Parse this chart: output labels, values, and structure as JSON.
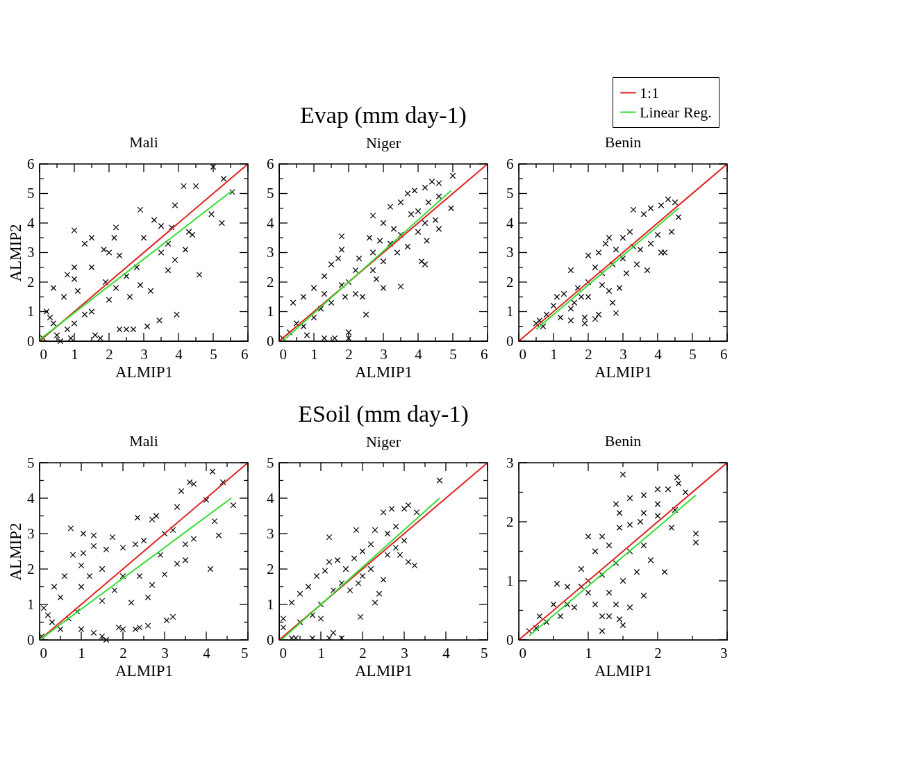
{
  "chart_data": [
    {
      "type": "scatter",
      "title": "Mali",
      "xlabel": "ALMIP1",
      "ylabel": "ALMIP2",
      "xlim": [
        0,
        6
      ],
      "ylim": [
        0,
        6
      ],
      "xticks": [
        0,
        {
          "value": 0.5,
          "label": null
        },
        1,
        {
          "value": 1.5,
          "label": null
        },
        2,
        {
          "value": 2.5,
          "label": null
        },
        3,
        {
          "value": 3.5,
          "label": null
        },
        4,
        {
          "value": 4.5,
          "label": null
        },
        5,
        {
          "value": 5.5,
          "label": null
        },
        6
      ],
      "yticks": [
        0,
        {
          "value": 0.5,
          "label": null
        },
        1,
        {
          "value": 1.5,
          "label": null
        },
        2,
        {
          "value": 2.5,
          "label": null
        },
        3,
        {
          "value": 3.5,
          "label": null
        },
        4,
        {
          "value": 4.5,
          "label": null
        },
        5,
        {
          "value": 5.5,
          "label": null
        },
        6
      ],
      "grid": false,
      "series": [
        {
          "type": "scatter",
          "marker": "cross",
          "color": "#000000",
          "x": [
            1.0,
            2.2,
            2.15,
            2.9,
            5.0,
            5.3,
            4.15,
            4.5,
            5.25,
            4.95,
            5.55,
            4.6,
            3.95,
            3.45,
            3.1,
            2.3,
            2.5,
            2.7,
            1.75,
            1.6,
            0.4,
            0.7,
            0.8,
            1.0,
            1.5,
            1.3,
            1.85,
            2.0,
            2.3,
            1.5,
            1.9,
            2.2,
            2.5,
            2.8,
            3.3,
            3.5,
            3.8,
            3.9,
            4.3,
            4.4,
            3.7,
            3.9,
            3.2,
            2.9,
            3.5,
            3.0,
            2.6,
            2.0,
            1.3,
            1.0,
            0.8,
            0.5,
            0.3,
            0.2,
            0.4,
            0.1,
            0.6,
            0.9,
            1.5,
            1.1,
            1.0,
            4.2,
            3.7
          ],
          "values": [
            3.75,
            3.85,
            3.5,
            4.45,
            5.9,
            5.5,
            5.25,
            5.25,
            4.0,
            4.3,
            5.05,
            2.25,
            0.9,
            0.7,
            0.5,
            0.4,
            0.4,
            0.4,
            0.1,
            0.2,
            1.8,
            1.5,
            2.25,
            2.5,
            3.5,
            3.3,
            3.1,
            3.0,
            2.9,
            2.5,
            2.0,
            1.8,
            2.2,
            2.5,
            4.1,
            3.9,
            3.85,
            4.6,
            3.7,
            3.6,
            2.4,
            2.75,
            1.7,
            1.9,
            3.0,
            3.5,
            1.5,
            1.4,
            0.9,
            0.6,
            0.4,
            0.2,
            0.8,
            1.0,
            0.6,
            0.1,
            0.0,
            0.1,
            1.0,
            1.7,
            2.1,
            3.1,
            3.3
          ]
        },
        {
          "type": "line",
          "color": "#e02020",
          "x": [
            0,
            6
          ],
          "values": [
            0,
            6
          ]
        },
        {
          "type": "line",
          "color": "#33dd33",
          "x": [
            0,
            5.55
          ],
          "values": [
            0.05,
            5.1
          ]
        }
      ]
    },
    {
      "type": "scatter",
      "title": "Evap (mm day-1)",
      "subtitle": "Niger",
      "xlabel": "ALMIP1",
      "xlim": [
        0,
        6
      ],
      "ylim": [
        0,
        6
      ],
      "xticks": [
        0,
        {
          "value": 0.5,
          "label": null
        },
        1,
        {
          "value": 1.5,
          "label": null
        },
        2,
        {
          "value": 2.5,
          "label": null
        },
        3,
        {
          "value": 3.5,
          "label": null
        },
        4,
        {
          "value": 4.5,
          "label": null
        },
        5,
        {
          "value": 5.5,
          "label": null
        },
        6
      ],
      "yticks": [
        0,
        {
          "value": 0.5,
          "label": null
        },
        1,
        {
          "value": 1.5,
          "label": null
        },
        2,
        {
          "value": 2.5,
          "label": null
        },
        3,
        {
          "value": 3.5,
          "label": null
        },
        4,
        {
          "value": 4.5,
          "label": null
        },
        5,
        {
          "value": 5.5,
          "label": null
        },
        6
      ],
      "grid": false,
      "series": [
        {
          "type": "scatter",
          "marker": "cross",
          "color": "#000000",
          "x": [
            0.4,
            0.7,
            1.0,
            1.3,
            1.5,
            1.8,
            1.8,
            1.7,
            2.7,
            2.6,
            3.0,
            3.2,
            3.5,
            3.7,
            3.9,
            4.2,
            4.4,
            4.6,
            5.0,
            4.95,
            4.6,
            4.5,
            4.2,
            4.25,
            4.1,
            4.2,
            3.5,
            3.0,
            2.5,
            2.4,
            2.0,
            2.0,
            1.6,
            1.3,
            0.8,
            0.3,
            0.1,
            0.5,
            0.7,
            1.0,
            1.2,
            1.5,
            2.0,
            2.2,
            2.2,
            2.7,
            2.7,
            3.0,
            3.2,
            3.4,
            3.5,
            3.7,
            3.8,
            4.0,
            4.3,
            4.6,
            3.3,
            2.9,
            2.3,
            1.8,
            1.9,
            1.3,
            4.0,
            2.8
          ],
          "values": [
            1.3,
            1.5,
            1.8,
            2.2,
            2.6,
            3.55,
            3.1,
            2.8,
            4.25,
            3.5,
            4.0,
            4.55,
            4.7,
            5.0,
            5.1,
            5.2,
            5.4,
            5.35,
            5.6,
            4.5,
            3.8,
            4.1,
            4.0,
            3.4,
            2.7,
            2.6,
            1.85,
            1.8,
            0.9,
            1.5,
            0.3,
            0.1,
            0.1,
            0.1,
            0.2,
            0.3,
            0.1,
            0.6,
            0.5,
            0.8,
            1.1,
            1.3,
            2.0,
            2.4,
            1.6,
            3.0,
            2.4,
            2.7,
            3.3,
            3.0,
            3.6,
            3.2,
            4.3,
            4.4,
            4.7,
            4.9,
            3.8,
            3.4,
            2.8,
            1.9,
            1.5,
            1.6,
            3.7,
            2.1
          ]
        },
        {
          "type": "line",
          "color": "#e02020",
          "x": [
            0,
            6
          ],
          "values": [
            0,
            6
          ]
        },
        {
          "type": "line",
          "color": "#33dd33",
          "x": [
            0.1,
            4.95
          ],
          "values": [
            0,
            5.1
          ]
        }
      ]
    },
    {
      "type": "scatter",
      "title": "Benin",
      "xlabel": "ALMIP1",
      "xlim": [
        0,
        6
      ],
      "ylim": [
        0,
        6
      ],
      "xticks": [
        0,
        {
          "value": 0.5,
          "label": null
        },
        1,
        {
          "value": 1.5,
          "label": null
        },
        2,
        {
          "value": 2.5,
          "label": null
        },
        3,
        {
          "value": 3.5,
          "label": null
        },
        4,
        {
          "value": 4.5,
          "label": null
        },
        5,
        {
          "value": 5.5,
          "label": null
        },
        6
      ],
      "yticks": [
        0,
        {
          "value": 0.5,
          "label": null
        },
        1,
        {
          "value": 1.5,
          "label": null
        },
        2,
        {
          "value": 2.5,
          "label": null
        },
        3,
        {
          "value": 3.5,
          "label": null
        },
        4,
        {
          "value": 4.5,
          "label": null
        },
        5,
        {
          "value": 5.5,
          "label": null
        },
        6
      ],
      "grid": false,
      "legend": "top right",
      "series": [
        {
          "type": "scatter",
          "marker": "cross",
          "color": "#000000",
          "x": [
            0.5,
            0.6,
            0.8,
            1.0,
            1.1,
            1.5,
            1.3,
            1.5,
            1.5,
            1.9,
            1.9,
            2.2,
            2.3,
            2.8,
            2.7,
            2.9,
            2.6,
            2.0,
            2.0,
            2.2,
            2.0,
            2.3,
            2.5,
            2.6,
            2.8,
            3.0,
            3.2,
            3.3,
            3.6,
            3.8,
            4.1,
            4.3,
            4.5,
            4.6,
            4.4,
            4.1,
            4.2,
            3.7,
            3.4,
            3.1,
            3.5,
            3.8,
            4.0,
            1.2,
            0.7,
            1.7,
            1.8,
            2.4,
            2.4,
            3.0,
            3.3,
            2.7,
            1.6
          ],
          "values": [
            0.6,
            0.7,
            0.9,
            1.2,
            1.5,
            2.4,
            1.6,
            1.1,
            0.7,
            0.8,
            0.6,
            0.75,
            0.9,
            0.95,
            1.3,
            1.8,
            1.7,
            1.5,
            2.0,
            2.5,
            2.9,
            3.0,
            3.3,
            3.5,
            3.1,
            3.5,
            3.7,
            4.45,
            4.3,
            4.5,
            4.6,
            4.8,
            4.7,
            4.2,
            3.7,
            3.0,
            3.0,
            2.4,
            2.6,
            2.3,
            3.1,
            3.3,
            3.6,
            0.8,
            0.5,
            1.8,
            1.5,
            2.3,
            1.9,
            2.8,
            3.2,
            2.6,
            1.3
          ]
        },
        {
          "type": "line",
          "name": "1:1",
          "color": "#e02020",
          "x": [
            0,
            6
          ],
          "values": [
            0,
            6
          ]
        },
        {
          "type": "line",
          "name": "Linear Reg.",
          "color": "#33dd33",
          "x": [
            0.5,
            4.6
          ],
          "values": [
            0.4,
            4.5
          ]
        }
      ]
    },
    {
      "type": "scatter",
      "title": "Mali",
      "xlabel": "ALMIP1",
      "ylabel": "ALMIP2",
      "xlim": [
        0,
        5
      ],
      "ylim": [
        0,
        5
      ],
      "xticks": [
        0,
        {
          "value": 0.5,
          "label": null
        },
        1,
        {
          "value": 1.5,
          "label": null
        },
        2,
        {
          "value": 2.5,
          "label": null
        },
        3,
        {
          "value": 3.5,
          "label": null
        },
        4,
        {
          "value": 4.5,
          "label": null
        },
        5
      ],
      "yticks": [
        0,
        {
          "value": 0.5,
          "label": null
        },
        1,
        {
          "value": 1.5,
          "label": null
        },
        2,
        {
          "value": 2.5,
          "label": null
        },
        3,
        {
          "value": 3.5,
          "label": null
        },
        4,
        {
          "value": 4.5,
          "label": null
        },
        5
      ],
      "grid": false,
      "series": [
        {
          "type": "scatter",
          "marker": "cross",
          "color": "#000000",
          "x": [
            0.75,
            1.05,
            1.3,
            1.3,
            1.05,
            0.8,
            0.6,
            0.35,
            0.5,
            1.0,
            1.5,
            1.75,
            1.6,
            2.0,
            2.3,
            2.35,
            2.5,
            2.7,
            2.8,
            3.0,
            3.2,
            3.3,
            3.4,
            3.6,
            3.7,
            4.15,
            4.4,
            4.0,
            4.65,
            4.2,
            4.3,
            4.1,
            3.5,
            3.3,
            3.5,
            3.7,
            3.0,
            2.7,
            2.6,
            2.2,
            2.3,
            2.4,
            2.6,
            3.05,
            3.2,
            1.9,
            2.0,
            1.5,
            1.6,
            1.3,
            1.0,
            0.5,
            0.2,
            0.1,
            0.3,
            0.05,
            0.7,
            0.9,
            1.5,
            1.8,
            2.0,
            2.4,
            2.9,
            1.0,
            1.2
          ],
          "values": [
            3.15,
            3.0,
            2.95,
            2.65,
            2.45,
            2.4,
            1.8,
            1.5,
            1.2,
            2.1,
            2.0,
            2.9,
            2.55,
            2.6,
            2.7,
            3.45,
            2.8,
            3.4,
            3.5,
            3.0,
            3.1,
            3.75,
            4.2,
            4.45,
            4.4,
            4.75,
            4.45,
            3.95,
            3.8,
            3.35,
            2.95,
            2.0,
            2.25,
            2.15,
            2.7,
            2.85,
            1.85,
            1.55,
            1.2,
            1.05,
            0.3,
            0.35,
            0.4,
            0.55,
            0.65,
            0.35,
            0.3,
            0.1,
            0.0,
            0.2,
            0.3,
            0.3,
            0.7,
            0.9,
            0.5,
            0.1,
            0.6,
            0.8,
            1.1,
            1.4,
            1.8,
            1.8,
            2.4,
            1.5,
            1.8
          ]
        },
        {
          "type": "line",
          "color": "#e02020",
          "x": [
            0,
            5
          ],
          "values": [
            0,
            5
          ]
        },
        {
          "type": "line",
          "color": "#33dd33",
          "x": [
            0,
            4.6
          ],
          "values": [
            0,
            4.0
          ]
        }
      ]
    },
    {
      "type": "scatter",
      "title": "ESoil (mm day-1)",
      "subtitle": "Niger",
      "xlabel": "ALMIP1",
      "xlim": [
        0,
        5
      ],
      "ylim": [
        0,
        5
      ],
      "xticks": [
        0,
        {
          "value": 0.5,
          "label": null
        },
        1,
        {
          "value": 1.5,
          "label": null
        },
        2,
        {
          "value": 2.5,
          "label": null
        },
        3,
        {
          "value": 3.5,
          "label": null
        },
        4,
        {
          "value": 4.5,
          "label": null
        },
        5
      ],
      "yticks": [
        0,
        {
          "value": 0.5,
          "label": null
        },
        1,
        {
          "value": 1.5,
          "label": null
        },
        2,
        {
          "value": 2.5,
          "label": null
        },
        3,
        {
          "value": 3.5,
          "label": null
        },
        4,
        {
          "value": 4.5,
          "label": null
        },
        5
      ],
      "grid": false,
      "series": [
        {
          "type": "scatter",
          "marker": "cross",
          "color": "#000000",
          "x": [
            3.85,
            1.2,
            1.85,
            2.3,
            2.5,
            2.7,
            3.0,
            3.1,
            3.3,
            3.0,
            2.9,
            3.1,
            3.25,
            2.5,
            2.4,
            2.3,
            1.95,
            1.5,
            1.3,
            1.2,
            0.8,
            0.4,
            0.1,
            0.1,
            0.3,
            0.5,
            0.7,
            0.9,
            1.1,
            1.2,
            1.4,
            1.6,
            1.8,
            2.0,
            2.2,
            2.6,
            2.8,
            1.0,
            0.8,
            0.5,
            0.3,
            1.5,
            1.7,
            2.0,
            2.2,
            2.6,
            1.3,
            1.9,
            2.8,
            1.0
          ],
          "values": [
            4.5,
            2.9,
            3.1,
            3.1,
            3.6,
            3.7,
            3.7,
            3.8,
            3.6,
            2.8,
            2.4,
            2.2,
            2.1,
            1.7,
            1.3,
            1.05,
            0.65,
            0.05,
            0.2,
            0.05,
            0.05,
            0.05,
            0.35,
            0.6,
            1.05,
            1.3,
            1.5,
            1.8,
            1.95,
            2.2,
            2.25,
            2.0,
            2.3,
            2.5,
            2.7,
            3.0,
            3.2,
            1.0,
            0.7,
            0.5,
            0.05,
            1.6,
            1.4,
            1.8,
            2.0,
            2.4,
            1.4,
            1.6,
            2.6,
            0.6
          ]
        },
        {
          "type": "line",
          "color": "#e02020",
          "x": [
            0,
            5
          ],
          "values": [
            0,
            5
          ]
        },
        {
          "type": "line",
          "color": "#33dd33",
          "x": [
            0.05,
            3.85
          ],
          "values": [
            0,
            4.0
          ]
        }
      ]
    },
    {
      "type": "scatter",
      "title": "Benin",
      "xlabel": "ALMIP1",
      "xlim": [
        0,
        3
      ],
      "ylim": [
        0,
        3
      ],
      "xticks": [
        0,
        {
          "value": 0.5,
          "label": null
        },
        1,
        {
          "value": 1.5,
          "label": null
        },
        2,
        {
          "value": 2.5,
          "label": null
        },
        3
      ],
      "yticks": [
        0,
        {
          "value": 0.5,
          "label": null
        },
        1,
        {
          "value": 1.5,
          "label": null
        },
        2,
        {
          "value": 2.5,
          "label": null
        },
        3
      ],
      "grid": false,
      "legend": "top right",
      "series": [
        {
          "type": "scatter",
          "marker": "cross",
          "color": "#000000",
          "x": [
            1.5,
            1.4,
            1.6,
            1.45,
            1.8,
            2.0,
            2.15,
            2.28,
            2.3,
            2.4,
            2.25,
            2.0,
            2.0,
            1.8,
            1.75,
            1.6,
            2.2,
            2.55,
            2.55,
            2.1,
            1.8,
            1.6,
            1.4,
            1.45,
            1.5,
            1.2,
            1.2,
            1.3,
            1.0,
            0.55,
            0.7,
            0.9,
            1.1,
            1.2,
            1.3,
            1.45,
            1.8,
            1.9,
            1.7,
            1.5,
            1.3,
            1.1,
            1.0,
            0.8,
            0.6,
            0.4,
            0.25,
            0.15,
            0.3,
            0.5,
            0.7,
            0.9,
            1.0,
            1.2,
            1.4,
            1.6
          ],
          "values": [
            2.8,
            2.3,
            2.4,
            2.15,
            2.45,
            2.55,
            2.55,
            2.75,
            2.65,
            2.5,
            2.2,
            2.3,
            2.1,
            2.15,
            2.0,
            1.95,
            1.9,
            1.8,
            1.65,
            1.15,
            0.75,
            0.55,
            0.6,
            0.35,
            0.25,
            0.15,
            0.4,
            0.4,
            1.75,
            0.95,
            0.9,
            1.2,
            1.5,
            1.75,
            1.6,
            1.9,
            1.6,
            1.35,
            1.15,
            1.0,
            0.8,
            0.6,
            0.8,
            0.55,
            0.4,
            0.3,
            0.2,
            0.15,
            0.4,
            0.6,
            0.6,
            0.9,
            1.0,
            1.1,
            1.3,
            1.5
          ]
        },
        {
          "type": "line",
          "name": "1:1",
          "color": "#e02020",
          "x": [
            0,
            3
          ],
          "values": [
            0,
            3
          ]
        },
        {
          "type": "line",
          "name": "Linear Reg.",
          "color": "#33dd33",
          "x": [
            0.15,
            2.55
          ],
          "values": [
            0.07,
            2.45
          ]
        }
      ]
    }
  ]
}
